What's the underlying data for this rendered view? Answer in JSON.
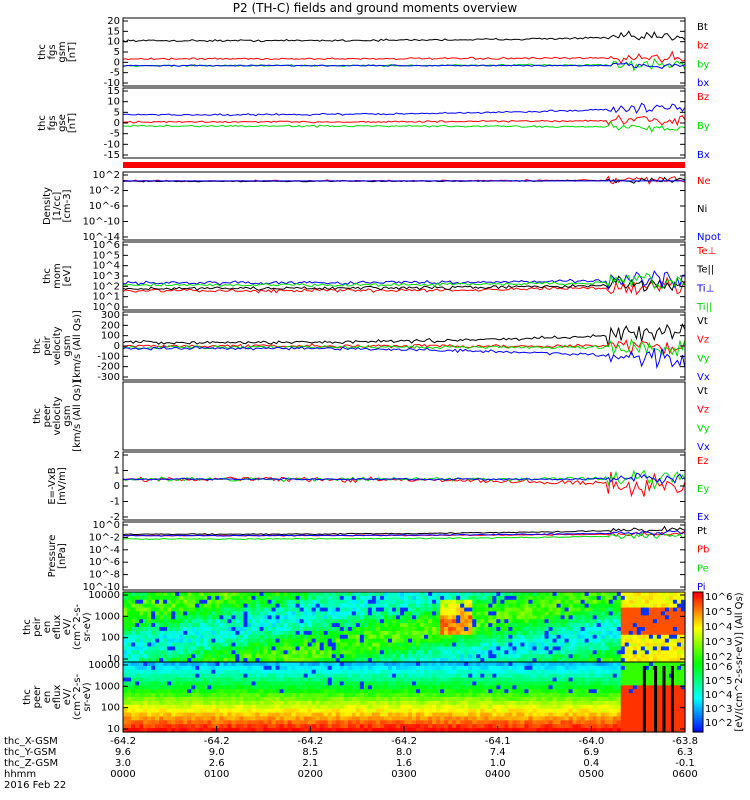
{
  "title": "P2 (TH-C) fields and ground moments overview",
  "colors": {
    "black": "#000000",
    "red": "#ff0000",
    "green": "#00dd00",
    "blue": "#0000ff"
  },
  "chart_data": [
    {
      "type": "line",
      "panel": "fgs-gsm-nT",
      "ylabel": [
        "thc",
        "fgs",
        "gsm",
        "[nT]"
      ],
      "yticks": [
        20,
        15,
        10,
        5,
        0,
        -5,
        -10
      ],
      "ylim": [
        -10,
        20
      ],
      "series": [
        {
          "name": "Bt",
          "color": "black",
          "base": 10,
          "trend": 2,
          "noise": 0.3
        },
        {
          "name": "bz",
          "color": "red",
          "base": 2,
          "trend": 0.5,
          "noise": 0.3
        },
        {
          "name": "by",
          "color": "green",
          "base": -1,
          "trend": 0.5,
          "noise": 0.3
        },
        {
          "name": "bx",
          "color": "blue",
          "base": -1,
          "trend": 0,
          "noise": 0.2
        }
      ]
    },
    {
      "type": "line",
      "panel": "fgs-gse-nT",
      "ylabel": [
        "thc",
        "fgs",
        "gse",
        "[nT]"
      ],
      "yticks": [
        15,
        10,
        5,
        0,
        -5,
        -10,
        -15
      ],
      "ylim": [
        -17,
        17
      ],
      "series": [
        {
          "name": "Bz",
          "color": "red",
          "base": 0.5,
          "trend": 1,
          "noise": 0.3
        },
        {
          "name": "By",
          "color": "green",
          "base": -1.5,
          "trend": -0.5,
          "noise": 0.3
        },
        {
          "name": "Bx",
          "color": "blue",
          "base": 4,
          "trend": 4,
          "noise": 0.3
        }
      ]
    },
    {
      "type": "line",
      "panel": "density",
      "ylabel": [
        "Density",
        "[1/cc]",
        "[cm-3]"
      ],
      "yticks": [
        "10^2",
        "10^-2",
        "10^-6",
        "10^-10",
        "10^-14"
      ],
      "ylim": [
        -16,
        3
      ],
      "series": [
        {
          "name": "Ne",
          "color": "red",
          "base": 0.5,
          "trend": 0.3,
          "noise": 0.15
        },
        {
          "name": "Ni",
          "color": "black",
          "base": 0.4,
          "trend": 0.3,
          "noise": 0.1
        },
        {
          "name": "Npot",
          "color": "blue",
          "base": 0.5,
          "trend": 0,
          "noise": 0
        }
      ]
    },
    {
      "type": "line",
      "panel": "temperature",
      "ylabel": [
        "thc",
        "mom",
        "[eV]"
      ],
      "yticks": [
        "10^6",
        "10^5",
        "10^4",
        "10^3",
        "10^2",
        "10^1",
        "10^0"
      ],
      "ylim": [
        0,
        6
      ],
      "series": [
        {
          "name": "Te⊥",
          "color": "red",
          "base": 1.7,
          "trend": 0.4,
          "noise": 0.1
        },
        {
          "name": "Te||",
          "color": "black",
          "base": 1.9,
          "trend": 0.4,
          "noise": 0.1
        },
        {
          "name": "Ti⊥",
          "color": "blue",
          "base": 2.4,
          "trend": 0.3,
          "noise": 0.1
        },
        {
          "name": "Ti||",
          "color": "green",
          "base": 2.2,
          "trend": 0.3,
          "noise": 0.1
        }
      ]
    },
    {
      "type": "line",
      "panel": "peir-velocity",
      "ylabel": [
        "thc",
        "peir",
        "velocity",
        "gsm",
        "[km/s (All Qs)]"
      ],
      "yticks": [
        300,
        200,
        100,
        0,
        -100,
        -200,
        -300
      ],
      "ylim": [
        -300,
        300
      ],
      "series": [
        {
          "name": "Vt",
          "color": "black",
          "base": 30,
          "trend": 100,
          "noise": 10
        },
        {
          "name": "Vz",
          "color": "red",
          "base": 0,
          "trend": 0,
          "noise": 10
        },
        {
          "name": "Vy",
          "color": "green",
          "base": -10,
          "trend": 0,
          "noise": 10
        },
        {
          "name": "Vx",
          "color": "blue",
          "base": -20,
          "trend": -100,
          "noise": 10
        }
      ]
    },
    {
      "type": "line",
      "panel": "peer-velocity",
      "ylabel": [
        "thc",
        "peer",
        "velocity",
        "gsm",
        "[km/s (All Qs)]"
      ],
      "yticks": [],
      "ylim": [
        -300,
        300
      ],
      "series": [
        {
          "name": "Vt",
          "color": "black"
        },
        {
          "name": "Vz",
          "color": "red"
        },
        {
          "name": "Vy",
          "color": "green"
        },
        {
          "name": "Vx",
          "color": "blue"
        }
      ]
    },
    {
      "type": "line",
      "panel": "efield",
      "ylabel": [
        "E=-VxB",
        "[mV/m]"
      ],
      "yticks": [
        2,
        1,
        0,
        -1,
        -2
      ],
      "ylim": [
        -3,
        2
      ],
      "series": [
        {
          "name": "Ez",
          "color": "red",
          "base": 0,
          "trend": -0.5,
          "noise": 0.12
        },
        {
          "name": "Ey",
          "color": "green",
          "base": 0,
          "trend": 0.1,
          "noise": 0.1
        },
        {
          "name": "Ex",
          "color": "blue",
          "base": 0,
          "trend": 0,
          "noise": 0.05
        }
      ]
    },
    {
      "type": "line",
      "panel": "pressure",
      "ylabel": [
        "Pressure",
        "[nPa]"
      ],
      "yticks": [
        "10^0",
        "10^-2",
        "10^-4",
        "10^-6",
        "10^-8",
        "10^-10"
      ],
      "ylim": [
        -10,
        0
      ],
      "series": [
        {
          "name": "Pt",
          "color": "black",
          "base": -1.8,
          "trend": 0.8,
          "noise": 0.05
        },
        {
          "name": "Pb",
          "color": "red",
          "base": -2.0,
          "trend": 0.3,
          "noise": 0.05
        },
        {
          "name": "Pe",
          "color": "green",
          "base": -2.5,
          "trend": 0.6,
          "noise": 0.05
        },
        {
          "name": "Pi",
          "color": "blue",
          "base": -2.0,
          "trend": 0.5,
          "noise": 0.05
        }
      ]
    },
    {
      "type": "heatmap",
      "panel": "peir-en-eflux",
      "ylabel": [
        "thc",
        "peir",
        "en",
        "eflux",
        "eV/",
        "(cm^2-s-",
        "sr-eV)"
      ],
      "yticks": [
        10000,
        1000,
        100,
        10
      ],
      "ylim": [
        5,
        20000
      ]
    },
    {
      "type": "heatmap",
      "panel": "peer-en-eflux",
      "ylabel": [
        "thc",
        "peer",
        "en",
        "eflux",
        "eV/",
        "(cm^2-s-",
        "sr-eV)"
      ],
      "yticks": [
        10000,
        1000,
        100,
        10
      ],
      "ylim": [
        5,
        20000
      ]
    }
  ],
  "colorbar": {
    "label": "[eV/(cm^2-s-sr-eV)] (All Qs)",
    "ticks_top": [
      "10^6",
      "10^5",
      "10^4",
      "10^3",
      "10^2"
    ],
    "ticks_bottom": [
      "10^6",
      "10^5",
      "10^4",
      "10^3",
      "10^2"
    ]
  },
  "xaxis": {
    "rows": [
      {
        "label": "thc_X-GSM",
        "values": [
          "-64.2",
          "-64.2",
          "-64.2",
          "-64.2",
          "-64.1",
          "-64.0",
          "-63.8"
        ]
      },
      {
        "label": "thc_Y-GSM",
        "values": [
          "9.6",
          "9.0",
          "8.5",
          "8.0",
          "7.4",
          "6.9",
          "6.3"
        ]
      },
      {
        "label": "thc_Z-GSM",
        "values": [
          "3.0",
          "2.6",
          "2.1",
          "1.6",
          "1.0",
          "0.4",
          "-0.1"
        ]
      },
      {
        "label": "hhmm",
        "values": [
          "0000",
          "0100",
          "0200",
          "0300",
          "0400",
          "0500",
          "0600"
        ]
      }
    ],
    "date": "2016 Feb 22"
  }
}
